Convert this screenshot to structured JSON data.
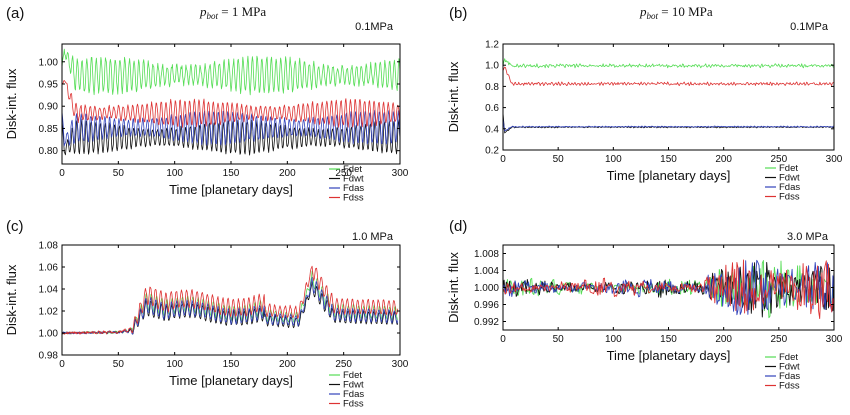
{
  "figure": {
    "header_a": {
      "symbol": "p",
      "subscript": "bot",
      "rest": " = 1 MPa"
    },
    "header_b": {
      "symbol": "p",
      "subscript": "bot",
      "rest": " = 10 MPa"
    }
  },
  "chart_data": [
    {
      "panel": "(a)",
      "type": "line",
      "corner_label": "0.1MPa",
      "xlabel": "Time [planetary days]",
      "ylabel": "Disk-int. flux",
      "xlim": [
        0,
        300
      ],
      "ylim": [
        0.77,
        1.04
      ],
      "xticks": [
        "0",
        "50",
        "100",
        "150",
        "200",
        "250",
        "300"
      ],
      "yticks": [
        "0.80",
        "0.85",
        "0.90",
        "0.95",
        "1.00"
      ],
      "legend": [
        "Fdet",
        "Fdwt",
        "Fdas",
        "Fdss"
      ],
      "legend_position": "below-right",
      "colors": [
        "#55dd55",
        "#111111",
        "#3344bb",
        "#dd3333"
      ],
      "series": [
        {
          "name": "Fdet",
          "color": "#55dd55",
          "start": 0.99,
          "peak": 1.025,
          "mean": 0.97,
          "amp": 0.03,
          "period": 4.2,
          "noise": 0.006
        },
        {
          "name": "Fdwt",
          "color": "#111111",
          "start": 0.87,
          "peak": 0.8,
          "mean": 0.83,
          "amp": 0.028,
          "period": 4.2,
          "noise": 0.004
        },
        {
          "name": "Fdas",
          "color": "#3344bb",
          "start": 0.89,
          "peak": 0.82,
          "mean": 0.852,
          "amp": 0.028,
          "period": 4.2,
          "noise": 0.004
        },
        {
          "name": "Fdss",
          "color": "#dd3333",
          "start": 0.95,
          "peak": 0.96,
          "mean": 0.885,
          "amp": 0.022,
          "period": 4.2,
          "noise": 0.004
        }
      ]
    },
    {
      "panel": "(b)",
      "type": "line",
      "corner_label": "0.1MPa",
      "xlabel": "Time [planetary days]",
      "ylabel": "Disk-int. flux",
      "xlim": [
        0,
        300
      ],
      "ylim": [
        0.2,
        1.2
      ],
      "xticks": [
        "0",
        "50",
        "100",
        "150",
        "200",
        "250",
        "300"
      ],
      "yticks": [
        "0.2",
        "0.4",
        "0.6",
        "0.8",
        "1.0",
        "1.2"
      ],
      "legend": [
        "Fdet",
        "Fdwt",
        "Fdas",
        "Fdss"
      ],
      "legend_position": "below-right",
      "colors": [
        "#55dd55",
        "#111111",
        "#3344bb",
        "#dd3333"
      ],
      "series": [
        {
          "name": "Fdet",
          "color": "#55dd55",
          "start": 1.0,
          "peak": 1.05,
          "mean": 0.995,
          "amp": 0.008,
          "period": 3.0,
          "noise": 0.012
        },
        {
          "name": "Fdwt",
          "color": "#111111",
          "start": 0.55,
          "peak": 0.36,
          "mean": 0.415,
          "amp": 0.003,
          "period": 3.0,
          "noise": 0.004
        },
        {
          "name": "Fdas",
          "color": "#3344bb",
          "start": 0.5,
          "peak": 0.38,
          "mean": 0.42,
          "amp": 0.003,
          "period": 3.0,
          "noise": 0.004
        },
        {
          "name": "Fdss",
          "color": "#dd3333",
          "start": 0.95,
          "peak": 0.98,
          "mean": 0.825,
          "amp": 0.008,
          "period": 3.0,
          "noise": 0.01
        }
      ]
    },
    {
      "panel": "(c)",
      "type": "line",
      "corner_label": "1.0 MPa",
      "xlabel": "Time [planetary days]",
      "ylabel": "Disk-int. flux",
      "xlim": [
        0,
        300
      ],
      "ylim": [
        0.98,
        1.08
      ],
      "xticks": [
        "0",
        "50",
        "100",
        "150",
        "200",
        "250",
        "300"
      ],
      "yticks": [
        "0.98",
        "1.00",
        "1.02",
        "1.04",
        "1.06",
        "1.08"
      ],
      "legend": [
        "Fdet",
        "Fdwt",
        "Fdas",
        "Fdss"
      ],
      "legend_position": "below-right",
      "colors": [
        "#55dd55",
        "#111111",
        "#3344bb",
        "#dd3333"
      ],
      "series": [
        {
          "name": "Fdet",
          "color": "#55dd55",
          "offset": 0.0,
          "scale": 1.0
        },
        {
          "name": "Fdwt",
          "color": "#111111",
          "offset": -0.003,
          "scale": 0.9
        },
        {
          "name": "Fdas",
          "color": "#3344bb",
          "offset": -0.002,
          "scale": 0.95
        },
        {
          "name": "Fdss",
          "color": "#dd3333",
          "offset": 0.003,
          "scale": 1.1
        }
      ]
    },
    {
      "panel": "(d)",
      "type": "line",
      "corner_label": "3.0 MPa",
      "xlabel": "Time [planetary days]",
      "ylabel": "Disk-int. flux",
      "xlim": [
        0,
        300
      ],
      "ylim": [
        0.99,
        1.01
      ],
      "xticks": [
        "0",
        "50",
        "100",
        "150",
        "200",
        "250",
        "300"
      ],
      "yticks": [
        "0.992",
        "0.996",
        "1.000",
        "1.004",
        "1.008"
      ],
      "legend": [
        "Fdet",
        "Fdwt",
        "Fdas",
        "Fdss"
      ],
      "legend_position": "below-right",
      "colors": [
        "#55dd55",
        "#111111",
        "#3344bb",
        "#dd3333"
      ],
      "series": [
        {
          "name": "Fdet",
          "color": "#55dd55"
        },
        {
          "name": "Fdwt",
          "color": "#111111"
        },
        {
          "name": "Fdas",
          "color": "#3344bb"
        },
        {
          "name": "Fdss",
          "color": "#dd3333"
        }
      ]
    }
  ]
}
